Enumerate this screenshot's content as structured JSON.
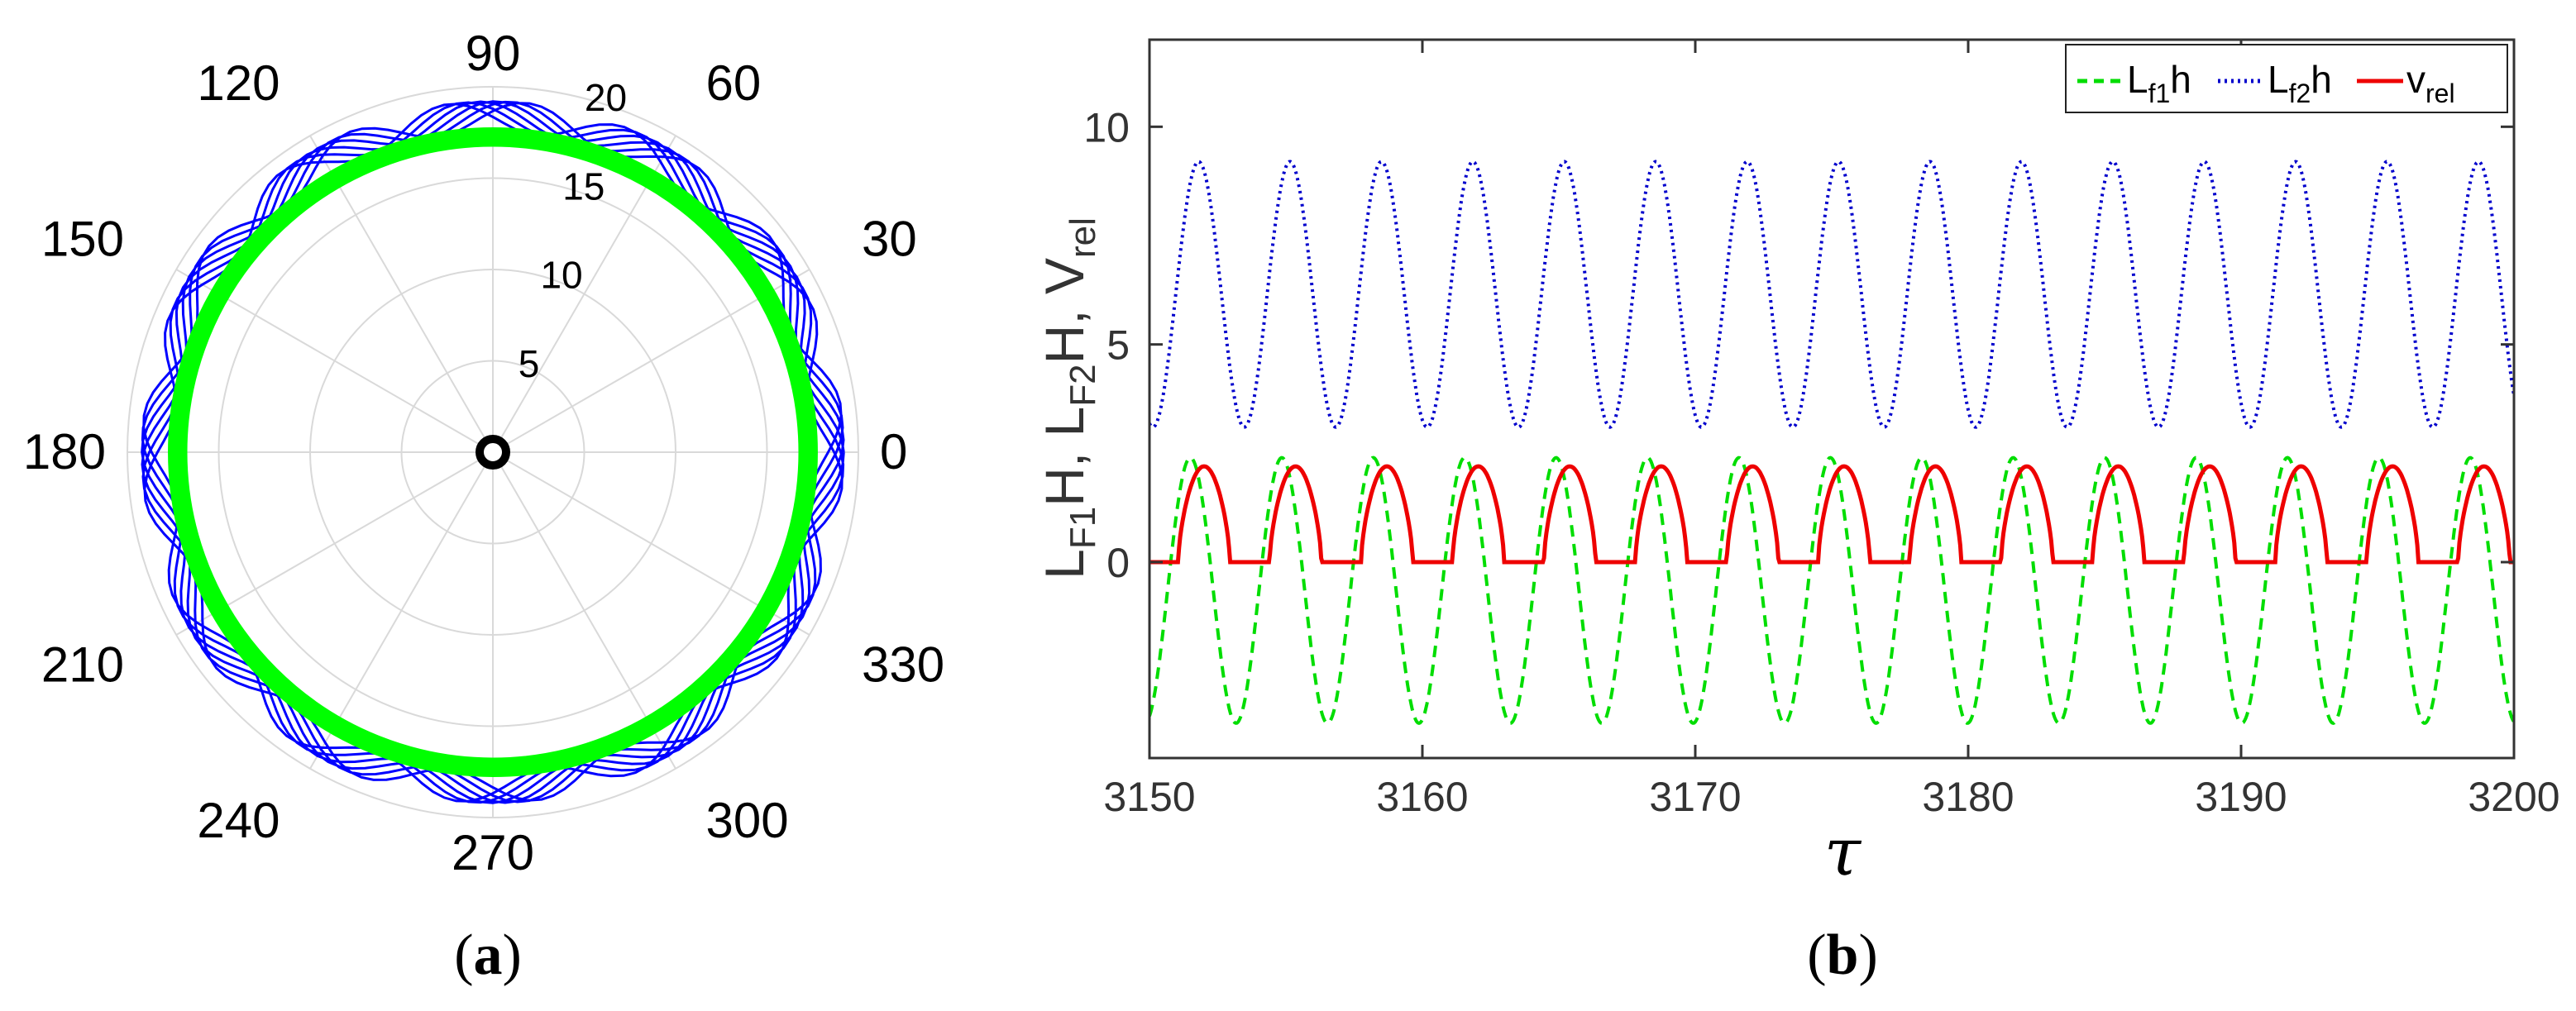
{
  "chart_data": [
    {
      "type": "polar",
      "panel": "(a)",
      "panel_letter": "a",
      "rlim": [
        0,
        20
      ],
      "r_ticks": [
        "5",
        "10",
        "15",
        "20"
      ],
      "angle_ticks": [
        "0",
        "30",
        "60",
        "90",
        "120",
        "150",
        "180",
        "210",
        "240",
        "270",
        "300",
        "330"
      ],
      "series": [
        {
          "name": "outer trajectory",
          "color": "#0000ff",
          "r_min": 17.5,
          "r_max": 19.2,
          "style": "solid thin, many overlapping loops"
        },
        {
          "name": "inner trajectory",
          "color": "#00ff00",
          "r_min": 16.9,
          "r_max": 17.6,
          "style": "thick solid ring"
        },
        {
          "name": "center",
          "color": "#000000",
          "r": 0.5,
          "style": "small thick ring at origin"
        }
      ]
    },
    {
      "type": "line",
      "panel": "(b)",
      "panel_letter": "b",
      "xlabel": "τ",
      "ylabel": "L_F1H, L_F2H, V_rel",
      "xlim": [
        3150,
        3200
      ],
      "ylim": [
        -4.5,
        12
      ],
      "x_ticks": [
        "3150",
        "3160",
        "3170",
        "3180",
        "3190",
        "3200"
      ],
      "y_ticks": [
        "0",
        "5",
        "10"
      ],
      "legend": {
        "position": "top-right",
        "entries": [
          {
            "main": "L",
            "sub": "f1",
            "suffix": "h",
            "color": "#00dd00",
            "dash": "dashed"
          },
          {
            "main": "L",
            "sub": "f2",
            "suffix": "h",
            "color": "#0000cc",
            "dash": "dotted"
          },
          {
            "main": "v",
            "sub": "rel",
            "suffix": "",
            "color": "#ee0000",
            "dash": "solid"
          }
        ]
      },
      "series": [
        {
          "name": "Lf1h",
          "color": "#00dd00",
          "style": "dashed",
          "period": 3.35,
          "min": -3.7,
          "max": 2.4,
          "phase_peak_x": 3151.5
        },
        {
          "name": "Lf2h",
          "color": "#0000cc",
          "style": "dotted",
          "period": 3.35,
          "min": 3.1,
          "max": 9.2,
          "phase_peak_x": 3151.8
        },
        {
          "name": "vrel",
          "color": "#ee0000",
          "style": "solid",
          "period": 3.35,
          "min": 0.0,
          "max": 2.2,
          "phase_peak_x": 3152.0
        }
      ]
    }
  ],
  "captions": {
    "a": {
      "open": "(",
      "letter": "a",
      "close": ")"
    },
    "b": {
      "open": "(",
      "letter": "b",
      "close": ")"
    }
  }
}
